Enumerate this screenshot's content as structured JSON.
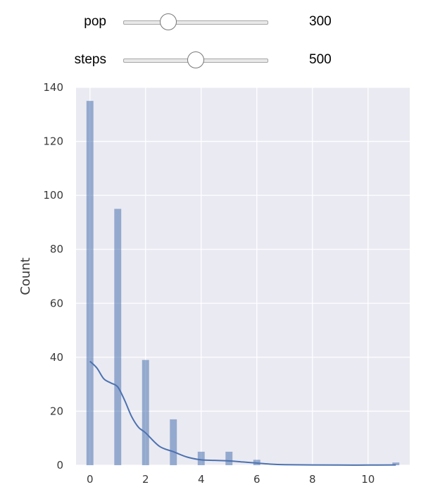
{
  "controls": {
    "pop": {
      "label": "pop",
      "value": "300",
      "fraction": 0.31
    },
    "steps": {
      "label": "steps",
      "value": "500",
      "fraction": 0.5
    }
  },
  "chart_data": {
    "type": "bar",
    "x": [
      0,
      1,
      2,
      3,
      4,
      5,
      6,
      7,
      8,
      9,
      10,
      11
    ],
    "values": [
      135,
      95,
      39,
      17,
      5,
      5,
      2,
      0,
      0,
      0,
      0,
      1
    ],
    "kde": {
      "x": [
        0,
        0.25,
        0.5,
        0.75,
        1.0,
        1.25,
        1.5,
        1.75,
        2.0,
        2.5,
        3.0,
        3.5,
        4.0,
        4.5,
        5.0,
        5.5,
        6.0,
        6.5,
        7.0,
        8.0,
        9.0,
        10.0,
        11.0
      ],
      "y": [
        38.5,
        36,
        32,
        30.5,
        29,
        24,
        18,
        14,
        12,
        7,
        5,
        3,
        2,
        1.8,
        1.6,
        1.2,
        0.8,
        0.4,
        0.2,
        0.1,
        0.05,
        0.05,
        0.1
      ]
    },
    "xlabel": "",
    "ylabel": "Count",
    "xlim": [
      -0.5,
      11.5
    ],
    "ylim": [
      0,
      140
    ],
    "xticks": [
      0,
      2,
      4,
      6,
      8,
      10
    ],
    "yticks": [
      0,
      20,
      40,
      60,
      80,
      100,
      120,
      140
    ],
    "grid": true,
    "colors": {
      "bar": "#4c72b0",
      "line": "#4c72b0",
      "background": "#eaeaf2",
      "grid": "#ffffff"
    }
  }
}
